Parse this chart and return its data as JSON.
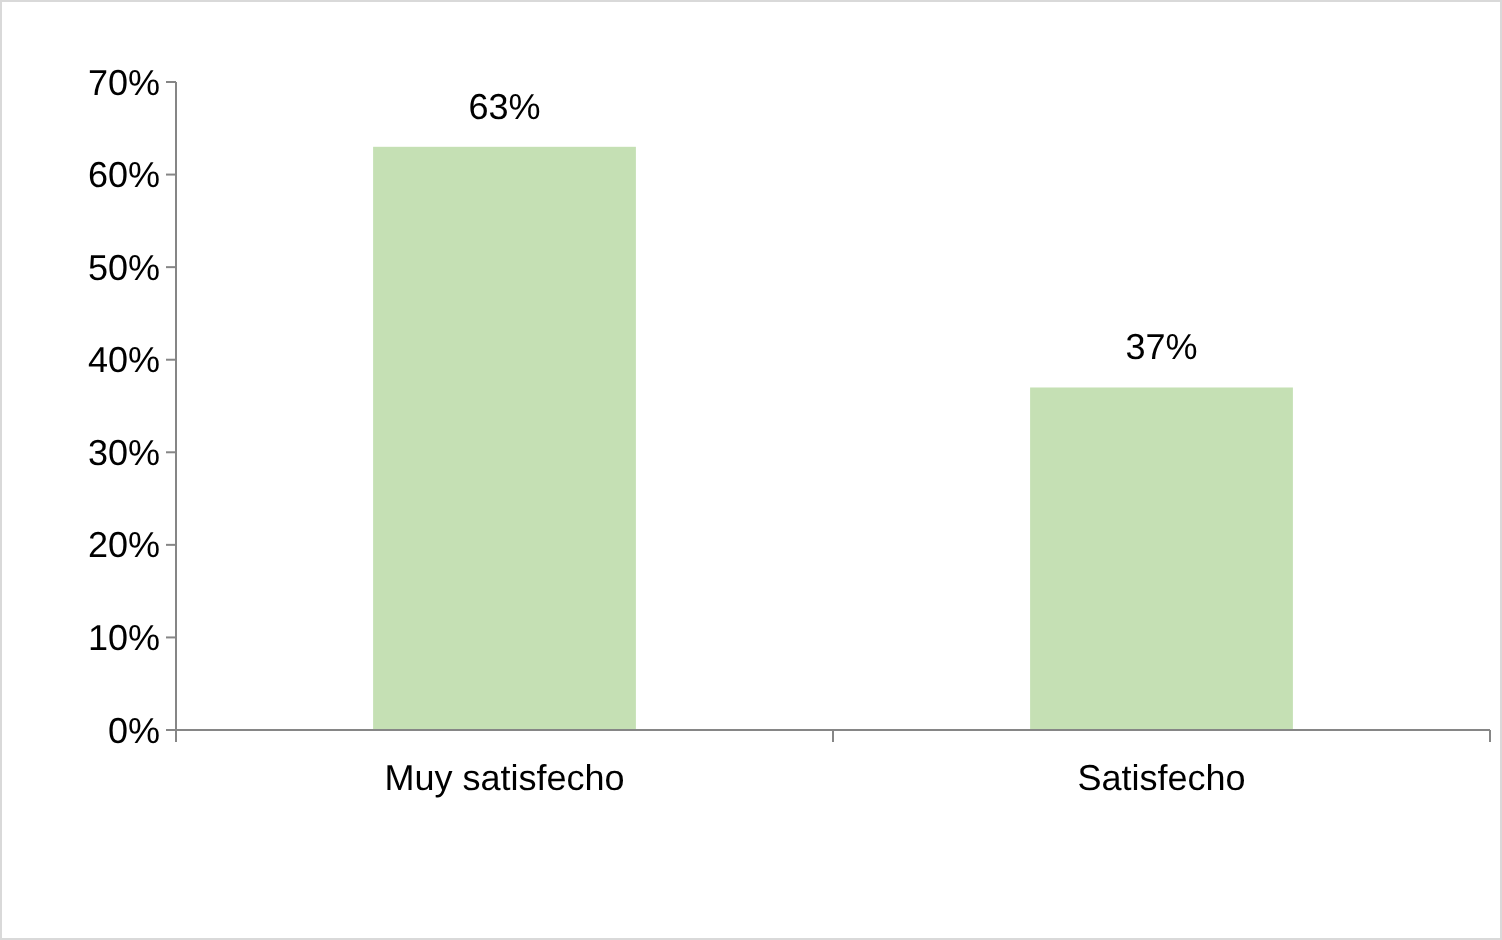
{
  "chart_data": {
    "type": "bar",
    "categories": [
      "Muy satisfecho",
      "Satisfecho"
    ],
    "values": [
      63,
      37
    ],
    "value_labels": [
      "63%",
      "37%"
    ],
    "color": "#c5e0b4",
    "ylim": [
      0,
      70
    ],
    "yticks": [
      {
        "value": 0,
        "label": "0%"
      },
      {
        "value": 10,
        "label": "10%"
      },
      {
        "value": 20,
        "label": "20%"
      },
      {
        "value": 30,
        "label": "30%"
      },
      {
        "value": 40,
        "label": "40%"
      },
      {
        "value": 50,
        "label": "50%"
      },
      {
        "value": 60,
        "label": "60%"
      },
      {
        "value": 70,
        "label": "70%"
      }
    ],
    "grid": false
  }
}
